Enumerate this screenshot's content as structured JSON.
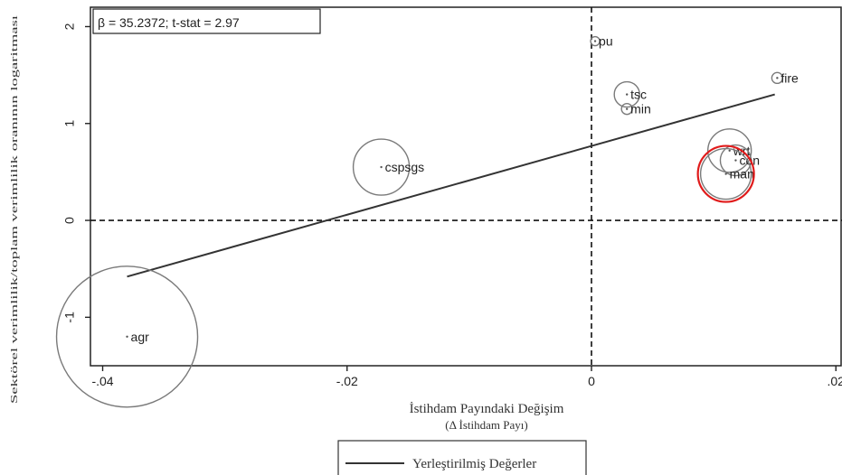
{
  "chart_data": {
    "type": "scatter",
    "annotation": "β = 35.2372; t-stat = 2.97",
    "xlabel": "İstihdam Payındaki Değişim",
    "xlabel_sub": "(Δ İstihdam Payı)",
    "ylabel": "Sektörel verimlilik/toplam verimlilik oranının logaritması",
    "xlim": [
      -0.041,
      0.0205
    ],
    "ylim": [
      -1.5,
      2.2
    ],
    "x_ticks": [
      {
        "value": -0.04,
        "label": "-.04"
      },
      {
        "value": -0.02,
        "label": "-.02"
      },
      {
        "value": 0,
        "label": "0"
      },
      {
        "value": 0.02,
        "label": ".02"
      }
    ],
    "y_ticks": [
      {
        "value": -1,
        "label": "-1"
      },
      {
        "value": 0,
        "label": "0"
      },
      {
        "value": 1,
        "label": "1"
      },
      {
        "value": 2,
        "label": "2"
      }
    ],
    "reference_lines": {
      "x": 0,
      "y": 0,
      "style": "dashed"
    },
    "fitted_line": {
      "name": "Yerleştirilmiş Değerler",
      "x": [
        -0.038,
        0.015
      ],
      "y": [
        -0.58,
        1.3
      ]
    },
    "points": [
      {
        "label": "agr",
        "x": -0.038,
        "y": -1.2,
        "size": 78
      },
      {
        "label": "cspsgs",
        "x": -0.0172,
        "y": 0.55,
        "size": 31
      },
      {
        "label": "tsc",
        "x": 0.0029,
        "y": 1.3,
        "size": 14
      },
      {
        "label": "min",
        "x": 0.0029,
        "y": 1.15,
        "size": 6
      },
      {
        "label": "pu",
        "x": 0.0003,
        "y": 1.85,
        "size": 5
      },
      {
        "label": "fire",
        "x": 0.0152,
        "y": 1.47,
        "size": 6
      },
      {
        "label": "wrt",
        "x": 0.0113,
        "y": 0.72,
        "size": 24
      },
      {
        "label": "con",
        "x": 0.0118,
        "y": 0.62,
        "size": 17
      },
      {
        "label": "man",
        "x": 0.011,
        "y": 0.48,
        "size": 28
      }
    ],
    "highlight": {
      "label": "man",
      "color": "#e01b1b"
    },
    "legend": {
      "placement": "bottom",
      "entries": [
        "Yerleştirilmiş Değerler"
      ]
    },
    "colors": {
      "axis": "#222222",
      "marker": "#7a7a7a",
      "highlight": "#e01b1b"
    }
  }
}
